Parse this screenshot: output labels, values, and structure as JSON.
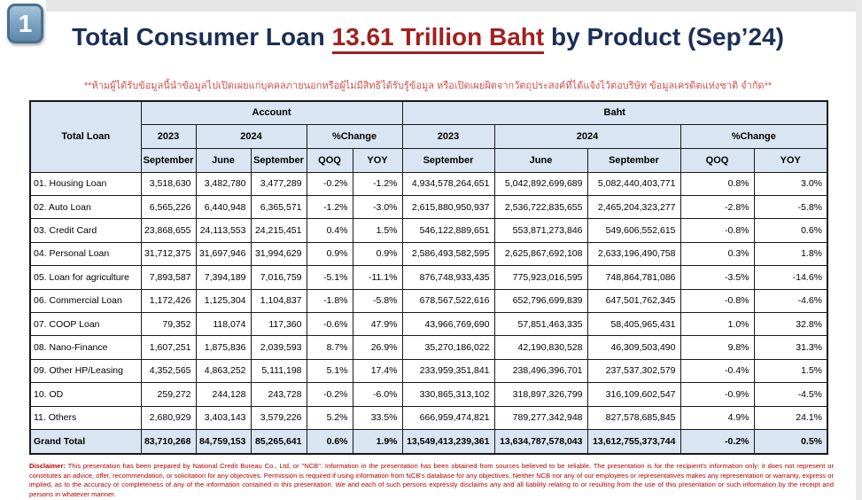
{
  "badge": {
    "number": "1"
  },
  "title": {
    "prefix": "Total Consumer Loan ",
    "highlight": "13.61 Trillion Baht",
    "suffix": " by Product (Sep’24)"
  },
  "confidentiality_note": "**ห้ามผู้ได้รับข้อมูลนี้นำข้อมูลไปเปิดเผยแก่บุคคลภายนอกหรือผู้ไม่มีสิทธิได้รับรู้ข้อมูล หรือเปิดเผยผิดจากวัตถุประสงค์ที่ได้แจ้งไว้ต่อบริษัท ข้อมูลเครดิตแห่งชาติ จำกัด**",
  "colors": {
    "title_navy": "#1b2f55",
    "title_red": "#a31f1f",
    "note_red": "#d05050",
    "header_bg": "#d9e5f2",
    "border": "#1a1a1a",
    "disclaimer_red": "#bb0000"
  },
  "table": {
    "corner_label": "Total Loan",
    "groups": {
      "account": "Account",
      "baht": "Baht"
    },
    "years": {
      "y2023": "2023",
      "y2024": "2024",
      "pct_change": "%Change"
    },
    "months": {
      "september": "September",
      "june": "June",
      "qoq": "QOQ",
      "yoy": "YOY"
    },
    "rows": [
      {
        "label": "01. Housing Loan",
        "account": [
          "3,518,630",
          "3,482,780",
          "3,477,289",
          "-0.2%",
          "-1.2%"
        ],
        "baht": [
          "4,934,578,264,651",
          "5,042,892,699,689",
          "5,082,440,403,771",
          "0.8%",
          "3.0%"
        ]
      },
      {
        "label": "02. Auto Loan",
        "account": [
          "6,565,226",
          "6,440,948",
          "6,365,571",
          "-1.2%",
          "-3.0%"
        ],
        "baht": [
          "2,615,880,950,937",
          "2,536,722,835,655",
          "2,465,204,323,277",
          "-2.8%",
          "-5.8%"
        ]
      },
      {
        "label": "03. Credit Card",
        "account": [
          "23,868,655",
          "24,113,553",
          "24,215,451",
          "0.4%",
          "1.5%"
        ],
        "baht": [
          "546,122,889,651",
          "553,871,273,846",
          "549,606,552,615",
          "-0.8%",
          "0.6%"
        ]
      },
      {
        "label": "04. Personal Loan",
        "account": [
          "31,712,375",
          "31,697,946",
          "31,994,629",
          "0.9%",
          "0.9%"
        ],
        "baht": [
          "2,586,493,582,595",
          "2,625,867,692,108",
          "2,633,196,490,758",
          "0.3%",
          "1.8%"
        ]
      },
      {
        "label": "05. Loan for agriculture",
        "account": [
          "7,893,587",
          "7,394,189",
          "7,016,759",
          "-5.1%",
          "-11.1%"
        ],
        "baht": [
          "876,748,933,435",
          "775,923,016,595",
          "748,864,781,086",
          "-3.5%",
          "-14.6%"
        ]
      },
      {
        "label": "06. Commercial Loan",
        "account": [
          "1,172,426",
          "1,125,304",
          "1,104,837",
          "-1.8%",
          "-5.8%"
        ],
        "baht": [
          "678,567,522,616",
          "652,796,699,839",
          "647,501,762,345",
          "-0.8%",
          "-4.6%"
        ]
      },
      {
        "label": "07. COOP Loan",
        "account": [
          "79,352",
          "118,074",
          "117,360",
          "-0.6%",
          "47.9%"
        ],
        "baht": [
          "43,966,769,690",
          "57,851,463,335",
          "58,405,965,431",
          "1.0%",
          "32.8%"
        ]
      },
      {
        "label": "08. Nano-Finance",
        "account": [
          "1,607,251",
          "1,875,836",
          "2,039,593",
          "8.7%",
          "26.9%"
        ],
        "baht": [
          "35,270,186,022",
          "42,190,830,528",
          "46,309,503,490",
          "9.8%",
          "31.3%"
        ]
      },
      {
        "label": "09. Other HP/Leasing",
        "account": [
          "4,352,565",
          "4,863,252",
          "5,111,198",
          "5.1%",
          "17.4%"
        ],
        "baht": [
          "233,959,351,841",
          "238,496,396,701",
          "237,537,302,579",
          "-0.4%",
          "1.5%"
        ]
      },
      {
        "label": "10. OD",
        "account": [
          "259,272",
          "244,128",
          "243,728",
          "-0.2%",
          "-6.0%"
        ],
        "baht": [
          "330,865,313,102",
          "318,897,326,799",
          "316,109,602,547",
          "-0.9%",
          "-4.5%"
        ]
      },
      {
        "label": "11. Others",
        "account": [
          "2,680,929",
          "3,403,143",
          "3,579,226",
          "5.2%",
          "33.5%"
        ],
        "baht": [
          "666,959,474,821",
          "789,277,342,948",
          "827,578,685,845",
          "4.9%",
          "24.1%"
        ]
      }
    ],
    "grand_total": {
      "label": "Grand Total",
      "account": [
        "83,710,268",
        "84,759,153",
        "85,265,641",
        "0.6%",
        "1.9%"
      ],
      "baht": [
        "13,549,413,239,361",
        "13,634,787,578,043",
        "13,612,755,373,744",
        "-0.2%",
        "0.5%"
      ]
    }
  },
  "disclaimer": {
    "label": "Disclaimer:",
    "text": "This presentation has been prepared by National Credit Bureau Co., Ltd, or \"NCB\". Information in the presentation has been obtained from sources believed to be reliable. The presentation is for the recipient's information only; it does not represent or constitutes an advice, offer, recommendation, or solicitation for any objectives. Permission is required if using information from NCB's database for any objectives. Neither NCB nor any of our employees or representatives makes any representation or warranty, express or implied, as to the accuracy or completeness of any of the information contained in this presentation. We and each of such persons expressly disclaims any and all liability relating to or resulting from the use of this presentation or such information by the receipt and persons in whatever manner."
  }
}
